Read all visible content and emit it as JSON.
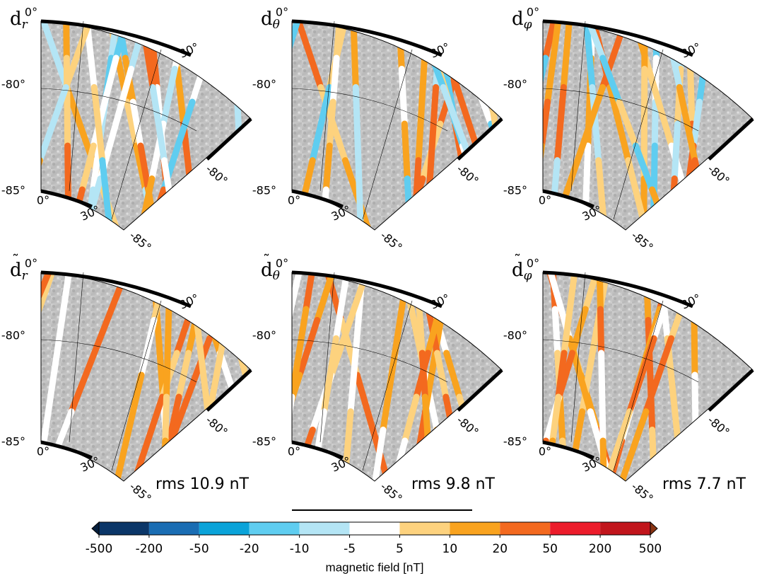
{
  "chart_data": {
    "type": "map-grid",
    "lon_ticks": [
      {
        "value": 0,
        "label": "0°"
      },
      {
        "value": 30,
        "label": "30°"
      }
    ],
    "lat_ticks": [
      {
        "value": -80,
        "label": "-80°"
      },
      {
        "value": -85,
        "label": "-85°"
      }
    ],
    "panels": [
      {
        "label": "d",
        "subscript": "r",
        "tilde": false
      },
      {
        "label": "d",
        "subscript": "θ",
        "tilde": false
      },
      {
        "label": "d",
        "subscript": "φ",
        "tilde": false
      },
      {
        "label": "d",
        "subscript": "r",
        "tilde": true,
        "rms": {
          "value": 10.9,
          "label": "rms 10.9 nT"
        }
      },
      {
        "label": "d",
        "subscript": "θ",
        "tilde": true,
        "rms": {
          "value": 9.8,
          "label": "rms 9.8 nT"
        }
      },
      {
        "label": "d",
        "subscript": "φ",
        "tilde": true,
        "rms": {
          "value": 7.7,
          "label": "rms 7.7 nT"
        }
      }
    ],
    "colorbar": {
      "label": "magnetic field [nT]",
      "ticks": [
        -500,
        -200,
        -50,
        -20,
        -10,
        -5,
        5,
        10,
        20,
        50,
        200,
        500
      ],
      "colors": [
        "#0b3668",
        "#1a6db3",
        "#0aa3d9",
        "#5fcdf0",
        "#b4e5f5",
        "#ffffff",
        "#fdd27e",
        "#f9a31f",
        "#f3691f",
        "#ec1c2b",
        "#c1151c"
      ],
      "under_color": "#061f3d",
      "over_color": "#8a3413"
    }
  }
}
